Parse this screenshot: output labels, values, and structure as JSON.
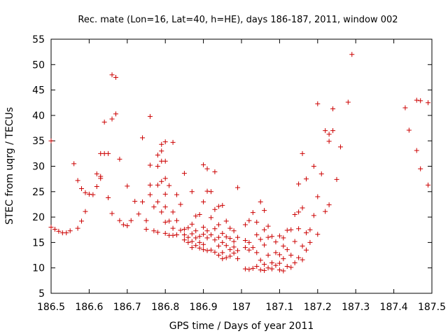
{
  "chart_data": {
    "type": "scatter",
    "title": "Rec. mate (Lon=16, Lat=40, h=HE), days 186-187, 2011, window 002",
    "xlabel": "GPS time / Days of year 2011",
    "ylabel": "STEC from uqrg / TECUs",
    "xlim": [
      186.5,
      187.5
    ],
    "ylim": [
      5,
      55
    ],
    "x_ticks": [
      "186.5",
      "186.6",
      "186.7",
      "186.8",
      "186.9",
      "187",
      "187.1",
      "187.2",
      "187.3",
      "187.4",
      "187.5"
    ],
    "y_ticks": [
      "5",
      "10",
      "15",
      "20",
      "25",
      "30",
      "35",
      "40",
      "45",
      "50",
      "55"
    ],
    "grid": false,
    "legend": "none",
    "marker": "plus",
    "color": "#cc0000",
    "series": [
      {
        "name": "",
        "points": [
          [
            186.5,
            18.0
          ],
          [
            186.5,
            35.0
          ],
          [
            186.51,
            17.6
          ],
          [
            186.52,
            17.2
          ],
          [
            186.53,
            16.9
          ],
          [
            186.54,
            16.9
          ],
          [
            186.55,
            17.3
          ],
          [
            186.56,
            30.5
          ],
          [
            186.57,
            17.8
          ],
          [
            186.57,
            27.2
          ],
          [
            186.58,
            19.2
          ],
          [
            186.58,
            25.6
          ],
          [
            186.59,
            21.1
          ],
          [
            186.59,
            24.8
          ],
          [
            186.6,
            24.5
          ],
          [
            186.61,
            24.4
          ],
          [
            186.62,
            28.5
          ],
          [
            186.62,
            26.0
          ],
          [
            186.63,
            28.0
          ],
          [
            186.63,
            27.6
          ],
          [
            186.63,
            32.5
          ],
          [
            186.64,
            32.5
          ],
          [
            186.64,
            38.7
          ],
          [
            186.65,
            32.5
          ],
          [
            186.65,
            23.8
          ],
          [
            186.66,
            39.3
          ],
          [
            186.66,
            48.0
          ],
          [
            186.66,
            20.7
          ],
          [
            186.67,
            47.5
          ],
          [
            186.67,
            40.3
          ],
          [
            186.68,
            19.3
          ],
          [
            186.68,
            31.4
          ],
          [
            186.69,
            18.5
          ],
          [
            186.7,
            18.3
          ],
          [
            186.7,
            26.1
          ],
          [
            186.71,
            19.3
          ],
          [
            186.72,
            23.1
          ],
          [
            186.73,
            20.6
          ],
          [
            186.74,
            35.6
          ],
          [
            186.74,
            23.0
          ],
          [
            186.75,
            19.3
          ],
          [
            186.75,
            17.6
          ],
          [
            186.76,
            39.8
          ],
          [
            186.76,
            30.2
          ],
          [
            186.76,
            24.4
          ],
          [
            186.76,
            26.3
          ],
          [
            186.77,
            17.3
          ],
          [
            186.77,
            22.0
          ],
          [
            186.78,
            26.3
          ],
          [
            186.78,
            30.0
          ],
          [
            186.78,
            32.2
          ],
          [
            186.78,
            17.0
          ],
          [
            186.78,
            23.0
          ],
          [
            186.79,
            34.3
          ],
          [
            186.79,
            33.0
          ],
          [
            186.79,
            31.0
          ],
          [
            186.79,
            27.0
          ],
          [
            186.79,
            21.0
          ],
          [
            186.8,
            34.8
          ],
          [
            186.8,
            31.0
          ],
          [
            186.8,
            27.6
          ],
          [
            186.8,
            24.5
          ],
          [
            186.8,
            22.0
          ],
          [
            186.8,
            19.0
          ],
          [
            186.8,
            16.8
          ],
          [
            186.81,
            26.2
          ],
          [
            186.81,
            19.2
          ],
          [
            186.81,
            16.4
          ],
          [
            186.82,
            34.7
          ],
          [
            186.82,
            21.0
          ],
          [
            186.82,
            17.8
          ],
          [
            186.82,
            16.4
          ],
          [
            186.83,
            24.4
          ],
          [
            186.83,
            19.3
          ],
          [
            186.83,
            16.5
          ],
          [
            186.84,
            17.4
          ],
          [
            186.84,
            22.5
          ],
          [
            186.85,
            17.6
          ],
          [
            186.85,
            16.5
          ],
          [
            186.85,
            28.6
          ],
          [
            186.85,
            15.5
          ],
          [
            186.86,
            17.9
          ],
          [
            186.86,
            16.0
          ],
          [
            186.86,
            15.0
          ],
          [
            186.87,
            25.0
          ],
          [
            186.87,
            18.6
          ],
          [
            186.87,
            16.7
          ],
          [
            186.87,
            15.2
          ],
          [
            186.87,
            14.0
          ],
          [
            186.88,
            20.2
          ],
          [
            186.88,
            17.3
          ],
          [
            186.88,
            15.9
          ],
          [
            186.88,
            14.4
          ],
          [
            186.89,
            20.5
          ],
          [
            186.89,
            16.2
          ],
          [
            186.89,
            15.0
          ],
          [
            186.89,
            13.9
          ],
          [
            186.9,
            30.3
          ],
          [
            186.9,
            23.0
          ],
          [
            186.9,
            18.0
          ],
          [
            186.9,
            16.6
          ],
          [
            186.9,
            14.6
          ],
          [
            186.9,
            13.6
          ],
          [
            186.91,
            29.5
          ],
          [
            186.91,
            25.1
          ],
          [
            186.91,
            17.3
          ],
          [
            186.91,
            15.9
          ],
          [
            186.91,
            13.4
          ],
          [
            186.92,
            25.0
          ],
          [
            186.92,
            19.9
          ],
          [
            186.92,
            16.5
          ],
          [
            186.92,
            13.5
          ],
          [
            186.93,
            28.9
          ],
          [
            186.93,
            21.5
          ],
          [
            186.93,
            17.7
          ],
          [
            186.93,
            15.5
          ],
          [
            186.93,
            13.1
          ],
          [
            186.94,
            22.1
          ],
          [
            186.94,
            18.5
          ],
          [
            186.94,
            16.0
          ],
          [
            186.94,
            14.3
          ],
          [
            186.94,
            12.5
          ],
          [
            186.95,
            22.3
          ],
          [
            186.95,
            16.8
          ],
          [
            186.95,
            15.0
          ],
          [
            186.95,
            13.0
          ],
          [
            186.95,
            11.8
          ],
          [
            186.96,
            19.2
          ],
          [
            186.96,
            16.1
          ],
          [
            186.96,
            14.4
          ],
          [
            186.96,
            12.0
          ],
          [
            186.97,
            17.8
          ],
          [
            186.97,
            15.8
          ],
          [
            186.97,
            13.6
          ],
          [
            186.97,
            12.3
          ],
          [
            186.98,
            17.3
          ],
          [
            186.98,
            15.2
          ],
          [
            186.98,
            14.1
          ],
          [
            186.98,
            12.9
          ],
          [
            186.99,
            25.8
          ],
          [
            186.99,
            16.0
          ],
          [
            186.99,
            13.4
          ],
          [
            186.99,
            11.8
          ],
          [
            187.01,
            18.5
          ],
          [
            187.01,
            15.4
          ],
          [
            187.01,
            14.0
          ],
          [
            187.01,
            9.8
          ],
          [
            187.02,
            19.3
          ],
          [
            187.02,
            15.0
          ],
          [
            187.02,
            13.5
          ],
          [
            187.02,
            9.7
          ],
          [
            187.03,
            20.9
          ],
          [
            187.03,
            14.0
          ],
          [
            187.03,
            9.9
          ],
          [
            187.04,
            19.0
          ],
          [
            187.04,
            16.5
          ],
          [
            187.04,
            13.0
          ],
          [
            187.04,
            10.3
          ],
          [
            187.05,
            23.0
          ],
          [
            187.05,
            15.6
          ],
          [
            187.05,
            11.5
          ],
          [
            187.05,
            9.6
          ],
          [
            187.06,
            21.3
          ],
          [
            187.06,
            17.5
          ],
          [
            187.06,
            14.5
          ],
          [
            187.06,
            10.7
          ],
          [
            187.06,
            9.5
          ],
          [
            187.07,
            18.2
          ],
          [
            187.07,
            16.0
          ],
          [
            187.07,
            12.5
          ],
          [
            187.07,
            10.0
          ],
          [
            187.08,
            16.2
          ],
          [
            187.08,
            11.0
          ],
          [
            187.08,
            9.8
          ],
          [
            187.09,
            15.1
          ],
          [
            187.09,
            13.0
          ],
          [
            187.09,
            10.5
          ],
          [
            187.1,
            16.3
          ],
          [
            187.1,
            12.6
          ],
          [
            187.1,
            10.9
          ],
          [
            187.1,
            9.6
          ],
          [
            187.11,
            15.9
          ],
          [
            187.11,
            14.3
          ],
          [
            187.11,
            11.8
          ],
          [
            187.11,
            9.4
          ],
          [
            187.12,
            17.4
          ],
          [
            187.12,
            13.6
          ],
          [
            187.12,
            10.3
          ],
          [
            187.13,
            17.5
          ],
          [
            187.13,
            12.5
          ],
          [
            187.13,
            10.1
          ],
          [
            187.14,
            20.5
          ],
          [
            187.14,
            15.2
          ],
          [
            187.14,
            11.0
          ],
          [
            187.15,
            26.5
          ],
          [
            187.15,
            21.0
          ],
          [
            187.15,
            17.7
          ],
          [
            187.15,
            12.0
          ],
          [
            187.16,
            32.5
          ],
          [
            187.16,
            21.8
          ],
          [
            187.16,
            14.3
          ],
          [
            187.16,
            11.6
          ],
          [
            187.17,
            27.5
          ],
          [
            187.17,
            16.9
          ],
          [
            187.17,
            13.5
          ],
          [
            187.18,
            17.5
          ],
          [
            187.18,
            15.0
          ],
          [
            187.19,
            30.0
          ],
          [
            187.19,
            20.3
          ],
          [
            187.2,
            42.3
          ],
          [
            187.2,
            24.0
          ],
          [
            187.2,
            16.6
          ],
          [
            187.21,
            28.5
          ],
          [
            187.22,
            37.0
          ],
          [
            187.22,
            21.1
          ],
          [
            187.23,
            36.3
          ],
          [
            187.23,
            34.9
          ],
          [
            187.23,
            22.4
          ],
          [
            187.24,
            37.0
          ],
          [
            187.24,
            41.3
          ],
          [
            187.25,
            27.4
          ],
          [
            187.26,
            33.8
          ],
          [
            187.28,
            42.6
          ],
          [
            187.29,
            52.0
          ],
          [
            187.43,
            41.5
          ],
          [
            187.44,
            37.1
          ],
          [
            187.46,
            43.0
          ],
          [
            187.46,
            33.1
          ],
          [
            187.47,
            42.9
          ],
          [
            187.47,
            29.5
          ],
          [
            187.49,
            42.5
          ],
          [
            187.49,
            26.3
          ]
        ]
      }
    ]
  }
}
